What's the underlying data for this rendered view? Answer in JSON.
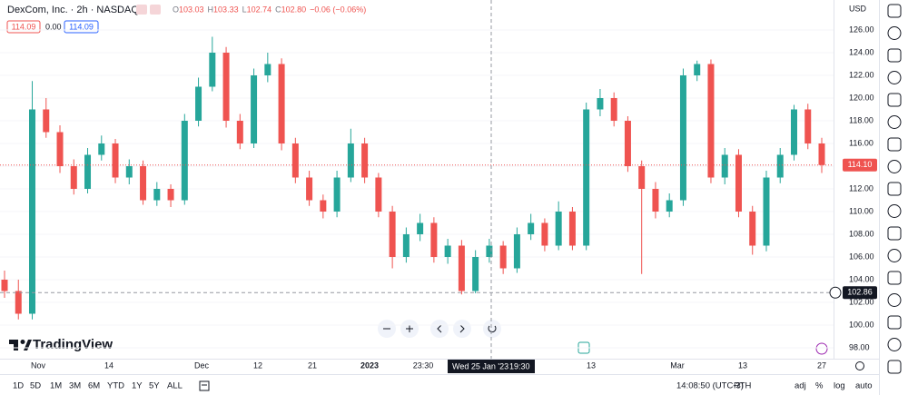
{
  "chart_data": {
    "type": "candlestick",
    "symbol_title": "DexCom, Inc. · 2h · NASDAQ",
    "ohlc_readout": {
      "open_label": "O",
      "open": "103.03",
      "high_label": "H",
      "high": "103.33",
      "low_label": "L",
      "low": "102.74",
      "close_label": "C",
      "close": "102.80",
      "change": "−0.06 (−0.06%)"
    },
    "sell_price": "114.09",
    "spread": "0.00",
    "buy_price": "114.09",
    "currency": "USD",
    "up_color": "#26a69a",
    "down_color": "#ef5350",
    "ylim": [
      97,
      127
    ],
    "yticks": [
      {
        "value": 98,
        "label": "98.00"
      },
      {
        "value": 100,
        "label": "100.00"
      },
      {
        "value": 102,
        "label": "102.00"
      },
      {
        "value": 104,
        "label": "104.00"
      },
      {
        "value": 106,
        "label": "106.00"
      },
      {
        "value": 108,
        "label": "108.00"
      },
      {
        "value": 110,
        "label": "110.00"
      },
      {
        "value": 112,
        "label": "112.00"
      },
      {
        "value": 114,
        "label": "114.00"
      },
      {
        "value": 116,
        "label": "116.00"
      },
      {
        "value": 118,
        "label": "118.00"
      },
      {
        "value": 120,
        "label": "120.00"
      },
      {
        "value": 122,
        "label": "122.00"
      },
      {
        "value": 124,
        "label": "124.00"
      },
      {
        "value": 126,
        "label": "126.00"
      }
    ],
    "last_price": {
      "value": 114.1,
      "label": "114.10"
    },
    "crosshair_price": {
      "value": 102.86,
      "label": "102.86"
    },
    "crosshair_time": [
      "Wed 25 Jan '23",
      "19:30"
    ],
    "x_labels": [
      "Nov",
      "14",
      "Dec",
      "12",
      "21",
      "2023",
      "23:30",
      "13",
      "Mar",
      "13",
      "27"
    ],
    "candles": [
      [
        104,
        104.8,
        102.4,
        103
      ],
      [
        103,
        104,
        100.5,
        101
      ],
      [
        101,
        121.5,
        100.5,
        119
      ],
      [
        119,
        120,
        116.5,
        117
      ],
      [
        117,
        117.6,
        113.4,
        114
      ],
      [
        114,
        114.6,
        111.5,
        112
      ],
      [
        112,
        115.6,
        111.6,
        115
      ],
      [
        115,
        116.7,
        114.5,
        116
      ],
      [
        116,
        116.4,
        112.5,
        113
      ],
      [
        113,
        114.6,
        112.4,
        114
      ],
      [
        114,
        114.5,
        110.6,
        111
      ],
      [
        111,
        112.6,
        110.5,
        112
      ],
      [
        112,
        112.4,
        110.4,
        111
      ],
      [
        111,
        118.6,
        110.6,
        118
      ],
      [
        118,
        121.8,
        117.5,
        121
      ],
      [
        121,
        125.4,
        120.6,
        124
      ],
      [
        124,
        124.5,
        117.4,
        118
      ],
      [
        118,
        118.6,
        115.5,
        116
      ],
      [
        116,
        122.6,
        115.6,
        122
      ],
      [
        122,
        124,
        121.4,
        123
      ],
      [
        123,
        123.5,
        115.4,
        116
      ],
      [
        116,
        116.5,
        112.5,
        113
      ],
      [
        113,
        113.6,
        110.5,
        111
      ],
      [
        111,
        111.5,
        109.4,
        110
      ],
      [
        110,
        113.6,
        109.5,
        113
      ],
      [
        113,
        117.3,
        112.6,
        116
      ],
      [
        116,
        116.5,
        112.5,
        113
      ],
      [
        113,
        113.4,
        109.5,
        110
      ],
      [
        110,
        110.5,
        105,
        106
      ],
      [
        106,
        108.6,
        105.5,
        108
      ],
      [
        108,
        109.8,
        107.4,
        109
      ],
      [
        109,
        109.5,
        105.5,
        106
      ],
      [
        106,
        107.6,
        105.4,
        107
      ],
      [
        107,
        107.5,
        102.7,
        103
      ],
      [
        103,
        106.6,
        102.8,
        106
      ],
      [
        106,
        107.6,
        105.5,
        107
      ],
      [
        107,
        107.4,
        104.5,
        105
      ],
      [
        105,
        108.6,
        104.6,
        108
      ],
      [
        108,
        109.8,
        107.5,
        109
      ],
      [
        109,
        109.4,
        106.5,
        107
      ],
      [
        107,
        110.9,
        106.6,
        110
      ],
      [
        110,
        110.4,
        106.6,
        107
      ],
      [
        107,
        119.6,
        106.6,
        119
      ],
      [
        119,
        120.8,
        118.4,
        120
      ],
      [
        120,
        120.5,
        117.5,
        118
      ],
      [
        118,
        118.4,
        113.5,
        114
      ],
      [
        114,
        114.5,
        104.5,
        112
      ],
      [
        112,
        112.6,
        109.4,
        110
      ],
      [
        110,
        111.6,
        109.5,
        111
      ],
      [
        111,
        122.6,
        110.5,
        122
      ],
      [
        122,
        123.3,
        121.5,
        123
      ],
      [
        123,
        123.4,
        112.5,
        113
      ],
      [
        113,
        115.6,
        112.4,
        115
      ],
      [
        115,
        115.5,
        109.5,
        110
      ],
      [
        110,
        110.5,
        106.2,
        107
      ],
      [
        107,
        113.6,
        106.5,
        113
      ],
      [
        113,
        115.6,
        112.5,
        115
      ],
      [
        115,
        119.4,
        114.5,
        119
      ],
      [
        119,
        119.5,
        115.5,
        116
      ],
      [
        116,
        116.5,
        113.4,
        114.1
      ]
    ],
    "logo_text": "TradingView",
    "range_buttons": [
      "1D",
      "5D",
      "1M",
      "3M",
      "6M",
      "YTD",
      "1Y",
      "5Y",
      "ALL"
    ],
    "clock": "14:08:50 (UTC-3)",
    "toggles": [
      "RTH",
      "adj",
      "%",
      "log",
      "auto"
    ]
  }
}
